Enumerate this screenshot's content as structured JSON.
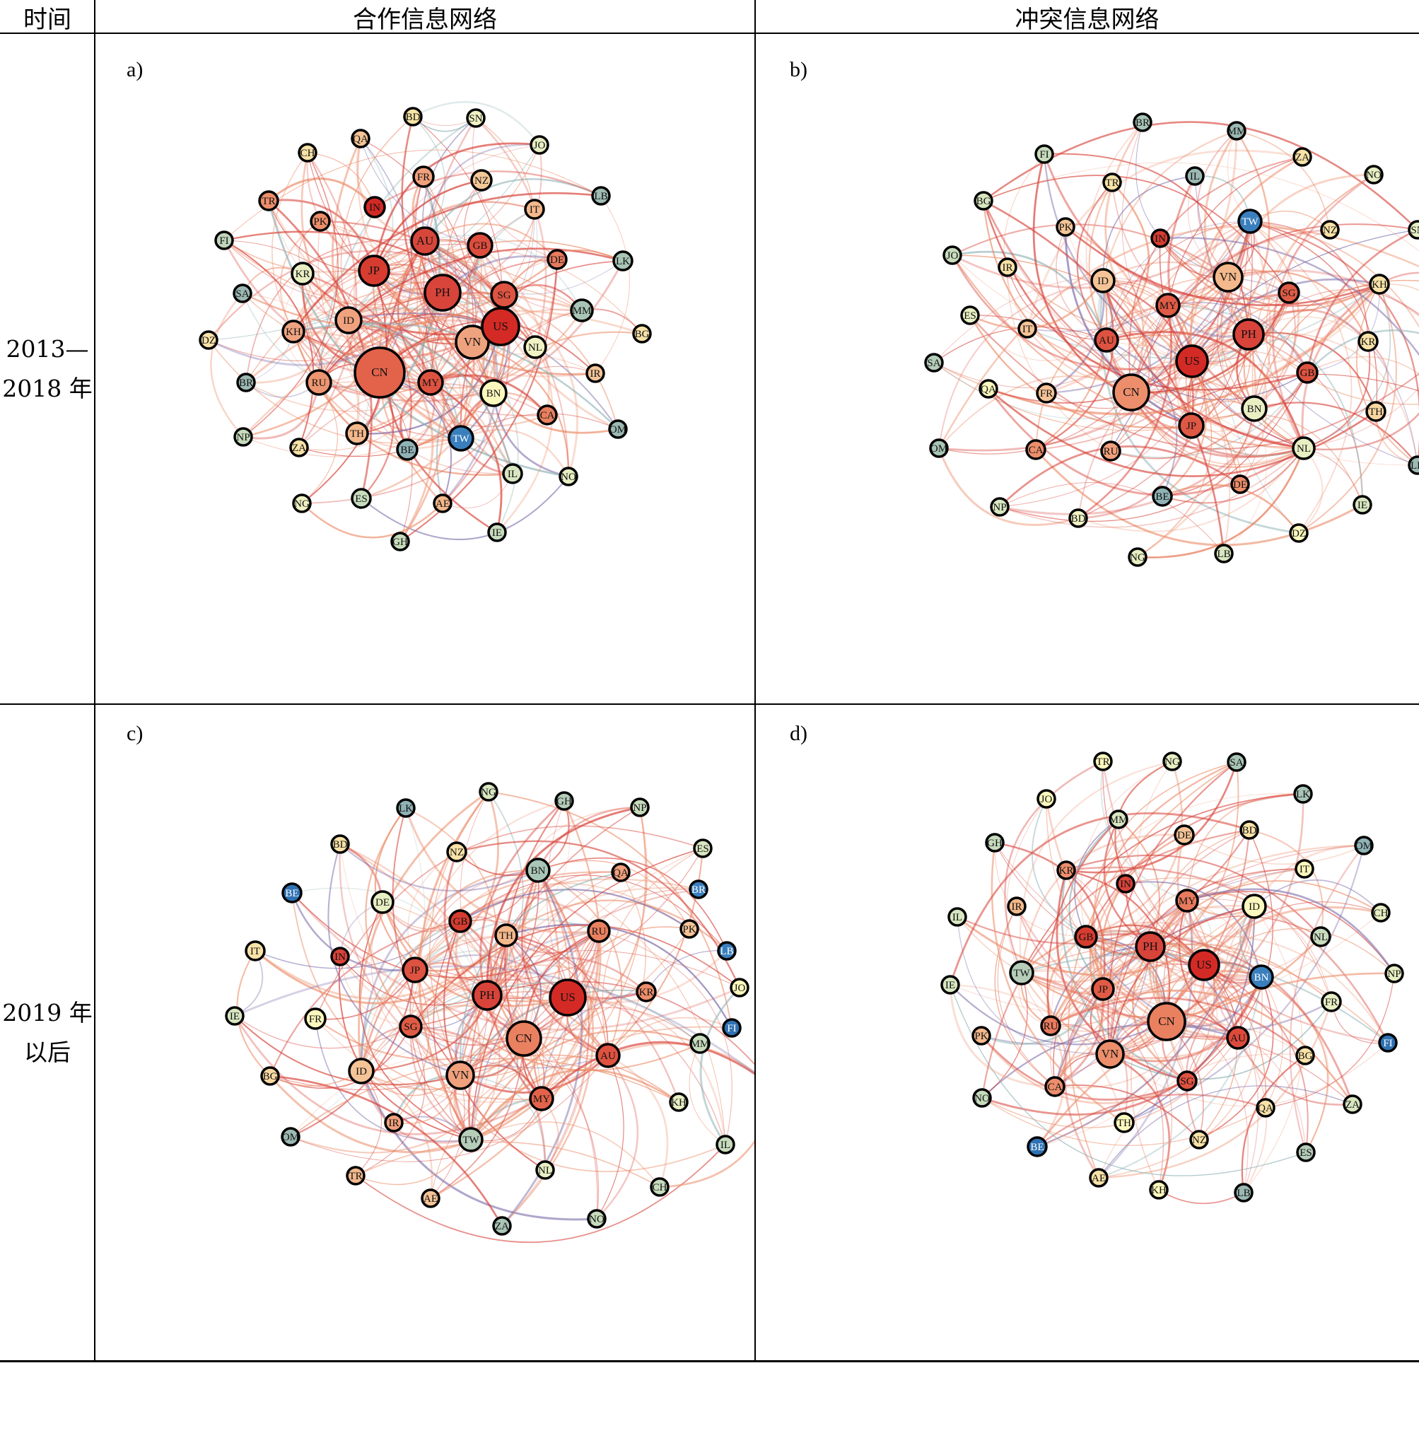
{
  "header": {
    "col_time": "时间",
    "col_coop": "合作信息网络",
    "col_conflict": "冲突信息网络"
  },
  "periods": [
    {
      "line1": "2013—",
      "line2": "2018 年"
    },
    {
      "line1": "2019 年",
      "line2": "以后"
    }
  ],
  "panels": [
    {
      "label": "a)",
      "nodes": [
        {
          "id": "US",
          "c": "#d42a25",
          "s": 44
        },
        {
          "id": "CN",
          "c": "#e2634a",
          "s": 62
        },
        {
          "id": "PH",
          "c": "#d8433a",
          "s": 42
        },
        {
          "id": "VN",
          "c": "#efa27e",
          "s": 38
        },
        {
          "id": "JP",
          "c": "#d63c30",
          "s": 34
        },
        {
          "id": "AU",
          "c": "#d7463a",
          "s": 30
        },
        {
          "id": "GB",
          "c": "#dc4d3d",
          "s": 26
        },
        {
          "id": "SG",
          "c": "#de5442",
          "s": 28
        },
        {
          "id": "MY",
          "c": "#dd5240",
          "s": 26
        },
        {
          "id": "ID",
          "c": "#f0a27f",
          "s": 28
        },
        {
          "id": "RU",
          "c": "#ed9570",
          "s": 26
        },
        {
          "id": "IN",
          "c": "#d32924",
          "s": 20
        },
        {
          "id": "BN",
          "c": "#fbf8bd",
          "s": 28
        },
        {
          "id": "TW",
          "c": "#3a7fbd",
          "s": 26
        },
        {
          "id": "KH",
          "c": "#efa380",
          "s": 22
        },
        {
          "id": "TH",
          "c": "#f3b88b",
          "s": 22
        },
        {
          "id": "KR",
          "c": "#e9efc3",
          "s": 22
        },
        {
          "id": "PK",
          "c": "#ec8e6b",
          "s": 18
        },
        {
          "id": "TR",
          "c": "#ec8e6b",
          "s": 18
        },
        {
          "id": "FR",
          "c": "#f0a07c",
          "s": 20
        },
        {
          "id": "NZ",
          "c": "#f4c797",
          "s": 20
        },
        {
          "id": "IT",
          "c": "#f4b88c",
          "s": 18
        },
        {
          "id": "DE",
          "c": "#e87a5e",
          "s": 18
        },
        {
          "id": "CA",
          "c": "#e9805f",
          "s": 18
        },
        {
          "id": "NL",
          "c": "#f0f2c4",
          "s": 22
        },
        {
          "id": "MM",
          "c": "#a9c5b6",
          "s": 22
        },
        {
          "id": "LK",
          "c": "#a9c5b6",
          "s": 18
        },
        {
          "id": "LB",
          "c": "#9ebcb4",
          "s": 16
        },
        {
          "id": "JO",
          "c": "#e7efc3",
          "s": 16
        },
        {
          "id": "SN",
          "c": "#f1f3c4",
          "s": 16
        },
        {
          "id": "BD",
          "c": "#f8e4a4",
          "s": 16
        },
        {
          "id": "QA",
          "c": "#f4c497",
          "s": 16
        },
        {
          "id": "CH",
          "c": "#f8e2a7",
          "s": 16
        },
        {
          "id": "FI",
          "c": "#c0d5bb",
          "s": 16
        },
        {
          "id": "SA",
          "c": "#9cb8b2",
          "s": 16
        },
        {
          "id": "DZ",
          "c": "#f8e2a8",
          "s": 16
        },
        {
          "id": "BR",
          "c": "#9cb8b2",
          "s": 16
        },
        {
          "id": "NP",
          "c": "#c7dcbd",
          "s": 16
        },
        {
          "id": "ZA",
          "c": "#f8e2a8",
          "s": 16
        },
        {
          "id": "BE",
          "c": "#8fb2b5",
          "s": 20
        },
        {
          "id": "ES",
          "c": "#c7dcbd",
          "s": 18
        },
        {
          "id": "NG",
          "c": "#f0f2c4",
          "s": 16
        },
        {
          "id": "AE",
          "c": "#f3b88b",
          "s": 16
        },
        {
          "id": "GH",
          "c": "#c7dcbd",
          "s": 16
        },
        {
          "id": "IE",
          "c": "#c7dcbd",
          "s": 16
        },
        {
          "id": "IL",
          "c": "#d8e6c1",
          "s": 18
        },
        {
          "id": "NO",
          "c": "#e7efc3",
          "s": 16
        },
        {
          "id": "OM",
          "c": "#9cb8b2",
          "s": 16
        },
        {
          "id": "IR",
          "c": "#f4c497",
          "s": 16
        },
        {
          "id": "BG",
          "c": "#f8e2a8",
          "s": 16
        }
      ]
    },
    {
      "label": "b)",
      "nodes": [
        {
          "id": "US",
          "c": "#d42a25",
          "s": 36
        },
        {
          "id": "CN",
          "c": "#ec8e6b",
          "s": 42
        },
        {
          "id": "PH",
          "c": "#d8433a",
          "s": 34
        },
        {
          "id": "VN",
          "c": "#f3b88b",
          "s": 32
        },
        {
          "id": "MY",
          "c": "#e05b45",
          "s": 24
        },
        {
          "id": "AU",
          "c": "#dd5240",
          "s": 24
        },
        {
          "id": "ID",
          "c": "#f4c497",
          "s": 24
        },
        {
          "id": "JP",
          "c": "#df5844",
          "s": 26
        },
        {
          "id": "SG",
          "c": "#e05b45",
          "s": 20
        },
        {
          "id": "GB",
          "c": "#dd5240",
          "s": 20
        },
        {
          "id": "BN",
          "c": "#e9efc3",
          "s": 26
        },
        {
          "id": "TW",
          "c": "#3a7fbd",
          "s": 24
        },
        {
          "id": "IN",
          "c": "#d63c30",
          "s": 16
        },
        {
          "id": "KH",
          "c": "#f8e2a7",
          "s": 18
        },
        {
          "id": "KR",
          "c": "#f8e2a7",
          "s": 18
        },
        {
          "id": "TH",
          "c": "#f8d7a0",
          "s": 18
        },
        {
          "id": "NL",
          "c": "#e7efc3",
          "s": 22
        },
        {
          "id": "RU",
          "c": "#f0a07c",
          "s": 18
        },
        {
          "id": "CA",
          "c": "#ec8e6b",
          "s": 18
        },
        {
          "id": "FR",
          "c": "#f4c497",
          "s": 18
        },
        {
          "id": "DE",
          "c": "#ec8e6b",
          "s": 16
        },
        {
          "id": "IT",
          "c": "#f4c497",
          "s": 16
        },
        {
          "id": "IR",
          "c": "#f8e2a7",
          "s": 16
        },
        {
          "id": "PK",
          "c": "#f4c497",
          "s": 16
        },
        {
          "id": "TR",
          "c": "#f8e2a7",
          "s": 16
        },
        {
          "id": "BE",
          "c": "#8fb2b5",
          "s": 18
        },
        {
          "id": "LK",
          "c": "#9ebcb4",
          "s": 16
        },
        {
          "id": "MM",
          "c": "#9cb8b2",
          "s": 16
        },
        {
          "id": "BR",
          "c": "#a9c5b6",
          "s": 16
        },
        {
          "id": "IL",
          "c": "#9cb8b2",
          "s": 16
        },
        {
          "id": "FI",
          "c": "#c7dcbd",
          "s": 16
        },
        {
          "id": "BG",
          "c": "#d8e6c1",
          "s": 16
        },
        {
          "id": "JO",
          "c": "#c7dcbd",
          "s": 16
        },
        {
          "id": "ES",
          "c": "#e7efc3",
          "s": 16
        },
        {
          "id": "SA",
          "c": "#b5cdb9",
          "s": 16
        },
        {
          "id": "QA",
          "c": "#fbf8bd",
          "s": 16
        },
        {
          "id": "OM",
          "c": "#a9c5b6",
          "s": 16
        },
        {
          "id": "NP",
          "c": "#d8e6c1",
          "s": 16
        },
        {
          "id": "BD",
          "c": "#f1f3c4",
          "s": 16
        },
        {
          "id": "NG",
          "c": "#e7efc3",
          "s": 16
        },
        {
          "id": "LB",
          "c": "#d8e6c1",
          "s": 16
        },
        {
          "id": "DZ",
          "c": "#fbf8bd",
          "s": 16
        },
        {
          "id": "IE",
          "c": "#d8e6c1",
          "s": 16
        },
        {
          "id": "AE",
          "c": "#f3b88b",
          "s": 16
        },
        {
          "id": "CH",
          "c": "#e7efc3",
          "s": 16
        },
        {
          "id": "GH",
          "c": "#b5cdb9",
          "s": 16
        },
        {
          "id": "SN",
          "c": "#e7efc3",
          "s": 16
        },
        {
          "id": "NO",
          "c": "#e7efc3",
          "s": 16
        },
        {
          "id": "NZ",
          "c": "#f8e2a7",
          "s": 16
        },
        {
          "id": "ZA",
          "c": "#f8e2a7",
          "s": 16
        }
      ]
    },
    {
      "label": "c)",
      "nodes": [
        {
          "id": "US",
          "c": "#d42a25",
          "s": 42
        },
        {
          "id": "CN",
          "c": "#e9805f",
          "s": 40
        },
        {
          "id": "PH",
          "c": "#d8433a",
          "s": 32
        },
        {
          "id": "VN",
          "c": "#f0a07c",
          "s": 30
        },
        {
          "id": "JP",
          "c": "#dd5240",
          "s": 26
        },
        {
          "id": "AU",
          "c": "#dd5240",
          "s": 24
        },
        {
          "id": "MY",
          "c": "#e2634a",
          "s": 24
        },
        {
          "id": "SG",
          "c": "#e05b45",
          "s": 22
        },
        {
          "id": "GB",
          "c": "#d63c30",
          "s": 22
        },
        {
          "id": "IN",
          "c": "#d8433a",
          "s": 16
        },
        {
          "id": "TH",
          "c": "#f3b88b",
          "s": 22
        },
        {
          "id": "RU",
          "c": "#e9805f",
          "s": 22
        },
        {
          "id": "KR",
          "c": "#ec8e6b",
          "s": 18
        },
        {
          "id": "ID",
          "c": "#f4c497",
          "s": 26
        },
        {
          "id": "BN",
          "c": "#a9c5b6",
          "s": 24
        },
        {
          "id": "TW",
          "c": "#b5cdb9",
          "s": 24
        },
        {
          "id": "DE",
          "c": "#e7efc3",
          "s": 22
        },
        {
          "id": "BE",
          "c": "#2f72b4",
          "s": 18
        },
        {
          "id": "BR",
          "c": "#3a7fbd",
          "s": 16
        },
        {
          "id": "LB",
          "c": "#3a7fbd",
          "s": 16
        },
        {
          "id": "FI",
          "c": "#2f72b4",
          "s": 16
        },
        {
          "id": "FR",
          "c": "#fbf8bd",
          "s": 20
        },
        {
          "id": "IT",
          "c": "#f8e2a7",
          "s": 18
        },
        {
          "id": "IE",
          "c": "#d8e6c1",
          "s": 16
        },
        {
          "id": "BG",
          "c": "#f8d7a0",
          "s": 16
        },
        {
          "id": "OM",
          "c": "#9cb8b2",
          "s": 16
        },
        {
          "id": "TR",
          "c": "#f3b88b",
          "s": 16
        },
        {
          "id": "AE",
          "c": "#f4c497",
          "s": 16
        },
        {
          "id": "ZA",
          "c": "#a9c5b6",
          "s": 16
        },
        {
          "id": "NO",
          "c": "#c7dcbd",
          "s": 16
        },
        {
          "id": "NL",
          "c": "#e7efc3",
          "s": 16
        },
        {
          "id": "CH",
          "c": "#c7dcbd",
          "s": 16
        },
        {
          "id": "IL",
          "c": "#c7dcbd",
          "s": 16
        },
        {
          "id": "KH",
          "c": "#e7efc3",
          "s": 16
        },
        {
          "id": "SA",
          "c": "#9cb8b2",
          "s": 16
        },
        {
          "id": "MM",
          "c": "#c7dcbd",
          "s": 18
        },
        {
          "id": "JO",
          "c": "#fbf8bd",
          "s": 16
        },
        {
          "id": "PK",
          "c": "#f4c497",
          "s": 16
        },
        {
          "id": "QA",
          "c": "#f0a07c",
          "s": 16
        },
        {
          "id": "ES",
          "c": "#d8e6c1",
          "s": 16
        },
        {
          "id": "NP",
          "c": "#c7dcbd",
          "s": 16
        },
        {
          "id": "GH",
          "c": "#b5cdb9",
          "s": 16
        },
        {
          "id": "NG",
          "c": "#d8e6c1",
          "s": 16
        },
        {
          "id": "LK",
          "c": "#8fb2b5",
          "s": 16
        },
        {
          "id": "BD",
          "c": "#f8e2a7",
          "s": 16
        },
        {
          "id": "NZ",
          "c": "#f8e2a7",
          "s": 18
        },
        {
          "id": "IR",
          "c": "#f0a07c",
          "s": 16
        }
      ]
    },
    {
      "label": "d)",
      "nodes": [
        {
          "id": "US",
          "c": "#d42a25",
          "s": 34
        },
        {
          "id": "CN",
          "c": "#e9805f",
          "s": 44
        },
        {
          "id": "PH",
          "c": "#d8433a",
          "s": 32
        },
        {
          "id": "VN",
          "c": "#ec8e6b",
          "s": 30
        },
        {
          "id": "GB",
          "c": "#d63c30",
          "s": 22
        },
        {
          "id": "AU",
          "c": "#dd4a3c",
          "s": 22
        },
        {
          "id": "JP",
          "c": "#e05b45",
          "s": 22
        },
        {
          "id": "MY",
          "c": "#e87a5e",
          "s": 22
        },
        {
          "id": "IN",
          "c": "#d8433a",
          "s": 16
        },
        {
          "id": "SG",
          "c": "#dd5240",
          "s": 18
        },
        {
          "id": "RU",
          "c": "#e87a5e",
          "s": 18
        },
        {
          "id": "CA",
          "c": "#ec8e6b",
          "s": 18
        },
        {
          "id": "KR",
          "c": "#ec8e6b",
          "s": 16
        },
        {
          "id": "BN",
          "c": "#3a7fbd",
          "s": 24
        },
        {
          "id": "TW",
          "c": "#b5cdb9",
          "s": 24
        },
        {
          "id": "ID",
          "c": "#fbf8bd",
          "s": 24
        },
        {
          "id": "DE",
          "c": "#f4c497",
          "s": 18
        },
        {
          "id": "BE",
          "c": "#2f72b4",
          "s": 18
        },
        {
          "id": "OM",
          "c": "#8fb2b5",
          "s": 16
        },
        {
          "id": "FI",
          "c": "#2f72b4",
          "s": 16
        },
        {
          "id": "NL",
          "c": "#c7dcbd",
          "s": 18
        },
        {
          "id": "FR",
          "c": "#e7efc3",
          "s": 18
        },
        {
          "id": "IR",
          "c": "#f3b88b",
          "s": 16
        },
        {
          "id": "PK",
          "c": "#f3b88b",
          "s": 16
        },
        {
          "id": "TH",
          "c": "#fbf8bd",
          "s": 18
        },
        {
          "id": "NZ",
          "c": "#f8e2a7",
          "s": 16
        },
        {
          "id": "QA",
          "c": "#f8e2a7",
          "s": 16
        },
        {
          "id": "BG",
          "c": "#f8e2a7",
          "s": 16
        },
        {
          "id": "ES",
          "c": "#b5cdb9",
          "s": 16
        },
        {
          "id": "ZA",
          "c": "#d8e6c1",
          "s": 16
        },
        {
          "id": "LB",
          "c": "#9cb8b2",
          "s": 16
        },
        {
          "id": "KH",
          "c": "#fbf8bd",
          "s": 16
        },
        {
          "id": "AE",
          "c": "#f8e2a7",
          "s": 16
        },
        {
          "id": "NO",
          "c": "#c7dcbd",
          "s": 16
        },
        {
          "id": "IE",
          "c": "#d8e6c1",
          "s": 16
        },
        {
          "id": "IL",
          "c": "#d8e6c1",
          "s": 16
        },
        {
          "id": "GH",
          "c": "#c7dcbd",
          "s": 16
        },
        {
          "id": "JO",
          "c": "#fbf8bd",
          "s": 16
        },
        {
          "id": "MM",
          "c": "#d8e6c1",
          "s": 16
        },
        {
          "id": "TR",
          "c": "#fbf8bd",
          "s": 16
        },
        {
          "id": "NG",
          "c": "#e7efc3",
          "s": 16
        },
        {
          "id": "SA",
          "c": "#a9c5b6",
          "s": 16
        },
        {
          "id": "LK",
          "c": "#a9c5b6",
          "s": 16
        },
        {
          "id": "BD",
          "c": "#f8e2a7",
          "s": 16
        },
        {
          "id": "IT",
          "c": "#fbf8bd",
          "s": 16
        },
        {
          "id": "CH",
          "c": "#e7efc3",
          "s": 16
        },
        {
          "id": "NP",
          "c": "#e7efc3",
          "s": 16
        }
      ]
    }
  ]
}
